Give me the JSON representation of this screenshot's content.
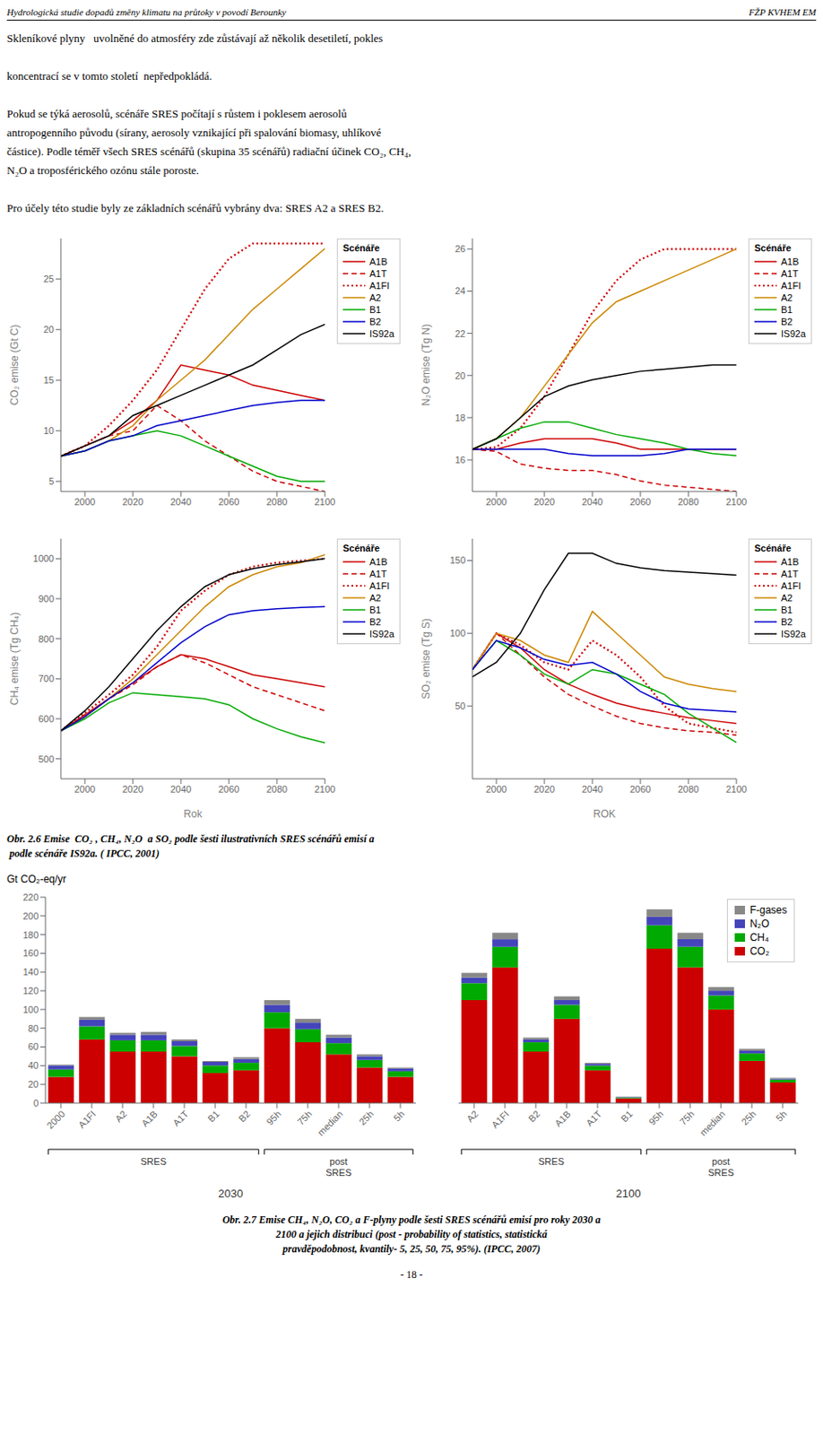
{
  "chart_data": [
    {
      "type": "line",
      "ylabel": "CO₂ emise (Gt C)",
      "legend": "right",
      "legend_title": "Scénáře",
      "grid": false,
      "x": [
        1990,
        2000,
        2010,
        2020,
        2030,
        2040,
        2050,
        2060,
        2070,
        2080,
        2090,
        2100
      ],
      "xlim": [
        1990,
        2100
      ],
      "xticks": [
        2000,
        2020,
        2040,
        2060,
        2080,
        2100
      ],
      "ylim": [
        4,
        29
      ],
      "yticks": [
        5,
        10,
        15,
        20,
        25
      ],
      "series": [
        {
          "name": "A1B",
          "color": "#cc0000",
          "line_style": "solid",
          "values": [
            7.5,
            8.5,
            9.5,
            11.0,
            13.0,
            16.5,
            16.0,
            15.5,
            14.5,
            14.0,
            13.5,
            13.0
          ]
        },
        {
          "name": "A1T",
          "color": "#cc0000",
          "line_style": "dashed",
          "values": [
            7.5,
            8.5,
            9.5,
            10.0,
            12.5,
            11.0,
            9.0,
            7.5,
            6.0,
            5.0,
            4.5,
            4.0
          ]
        },
        {
          "name": "A1FI",
          "color": "#cc0000",
          "line_style": "dotted",
          "values": [
            7.5,
            8.5,
            10.5,
            13.0,
            16.0,
            20.0,
            24.0,
            27.0,
            28.5,
            28.5,
            28.5,
            28.5
          ]
        },
        {
          "name": "A2",
          "color": "#cc8800",
          "line_style": "solid",
          "values": [
            7.5,
            8.0,
            9.0,
            10.5,
            13.0,
            15.0,
            17.0,
            19.5,
            22.0,
            24.0,
            26.0,
            28.0
          ]
        },
        {
          "name": "B1",
          "color": "#00aa00",
          "line_style": "solid",
          "values": [
            7.5,
            8.0,
            9.0,
            9.5,
            10.0,
            9.5,
            8.5,
            7.5,
            6.5,
            5.5,
            5.0,
            5.0
          ]
        },
        {
          "name": "B2",
          "color": "#0000cc",
          "line_style": "solid",
          "values": [
            7.5,
            8.0,
            9.0,
            9.5,
            10.5,
            11.0,
            11.5,
            12.0,
            12.5,
            12.8,
            13.0,
            13.0
          ]
        },
        {
          "name": "IS92a",
          "color": "#000000",
          "line_style": "solid",
          "values": [
            7.5,
            8.5,
            9.5,
            11.5,
            12.5,
            13.5,
            14.5,
            15.5,
            16.5,
            18.0,
            19.5,
            20.5
          ]
        }
      ],
      "annotations": [
        "Hydrologická studie dopadů změny klimatu na průtoky v povodí Berounky",
        "FŽP KVHEM EM",
        "Skleníkové plyny   uvolněné do atmosféry zde zůstávají až několik desetiletí, pokles\n\nkoncentrací se v tomto století  nepředpokládá.\n\nPokud se týká aerosolů, scénáře SRES počítají s růstem i poklesem aerosolů\nantropogenního původu (sírany, aerosoly vznikající při spalování biomasy, uhlíkové\nčástice). Podle téměř všech SRES scénářů (skupina 35 scénářů) radiační účinek CO₂, CH₄,\nN₂O a troposférického ozónu stále poroste.\n\nPro účely této studie byly ze základních scénářů vybrány dva: SRES A2 a SRES B2."
      ]
    },
    {
      "type": "line",
      "ylabel": "N₂O emise (Tg N)",
      "legend": "right",
      "legend_title": "Scénáře",
      "grid": false,
      "x": [
        1990,
        2000,
        2010,
        2020,
        2030,
        2040,
        2050,
        2060,
        2070,
        2080,
        2090,
        2100
      ],
      "xlim": [
        1990,
        2100
      ],
      "xticks": [
        2000,
        2020,
        2040,
        2060,
        2080,
        2100
      ],
      "ylim": [
        14.5,
        26.5
      ],
      "yticks": [
        16,
        18,
        20,
        22,
        24,
        26
      ],
      "series": [
        {
          "name": "A1B",
          "color": "#cc0000",
          "line_style": "solid",
          "values": [
            16.5,
            16.5,
            16.8,
            17.0,
            17.0,
            17.0,
            16.8,
            16.5,
            16.5,
            16.5,
            16.5,
            16.5
          ]
        },
        {
          "name": "A1T",
          "color": "#cc0000",
          "line_style": "dashed",
          "values": [
            16.5,
            16.4,
            15.8,
            15.6,
            15.5,
            15.5,
            15.3,
            15.0,
            14.8,
            14.7,
            14.6,
            14.5
          ]
        },
        {
          "name": "A1FI",
          "color": "#cc0000",
          "line_style": "dotted",
          "values": [
            16.5,
            16.6,
            17.5,
            19.0,
            21.0,
            23.0,
            24.5,
            25.5,
            26.0,
            26.0,
            26.0,
            26.0
          ]
        },
        {
          "name": "A2",
          "color": "#cc8800",
          "line_style": "solid",
          "values": [
            16.5,
            17.0,
            18.0,
            19.5,
            21.0,
            22.5,
            23.5,
            24.0,
            24.5,
            25.0,
            25.5,
            26.0
          ]
        },
        {
          "name": "B1",
          "color": "#00aa00",
          "line_style": "solid",
          "values": [
            16.5,
            17.0,
            17.5,
            17.8,
            17.8,
            17.5,
            17.2,
            17.0,
            16.8,
            16.5,
            16.3,
            16.2
          ]
        },
        {
          "name": "B2",
          "color": "#0000cc",
          "line_style": "solid",
          "values": [
            16.5,
            16.5,
            16.5,
            16.5,
            16.3,
            16.2,
            16.2,
            16.2,
            16.3,
            16.5,
            16.5,
            16.5
          ]
        },
        {
          "name": "IS92a",
          "color": "#000000",
          "line_style": "solid",
          "values": [
            16.5,
            17.0,
            18.0,
            19.0,
            19.5,
            19.8,
            20.0,
            20.2,
            20.3,
            20.4,
            20.5,
            20.5
          ]
        }
      ]
    },
    {
      "type": "line",
      "ylabel": "CH₄  emise  (Tg CH₄)",
      "xlabel": "Rok",
      "legend": "right",
      "legend_title": "Scénáře",
      "grid": false,
      "x": [
        1990,
        2000,
        2010,
        2020,
        2030,
        2040,
        2050,
        2060,
        2070,
        2080,
        2090,
        2100
      ],
      "xlim": [
        1990,
        2100
      ],
      "xticks": [
        2000,
        2020,
        2040,
        2060,
        2080,
        2100
      ],
      "ylim": [
        450,
        1050
      ],
      "yticks": [
        500,
        600,
        700,
        800,
        900,
        1000
      ],
      "series": [
        {
          "name": "A1B",
          "color": "#cc0000",
          "line_style": "solid",
          "values": [
            570,
            610,
            650,
            690,
            730,
            760,
            750,
            730,
            710,
            700,
            690,
            680
          ]
        },
        {
          "name": "A1T",
          "color": "#cc0000",
          "line_style": "dashed",
          "values": [
            570,
            610,
            650,
            685,
            730,
            760,
            740,
            710,
            680,
            660,
            640,
            620
          ]
        },
        {
          "name": "A1FI",
          "color": "#cc0000",
          "line_style": "dotted",
          "values": [
            570,
            615,
            660,
            710,
            780,
            870,
            920,
            960,
            980,
            990,
            995,
            1000
          ]
        },
        {
          "name": "A2",
          "color": "#cc8800",
          "line_style": "solid",
          "values": [
            570,
            605,
            650,
            700,
            760,
            820,
            880,
            930,
            960,
            980,
            990,
            1010
          ]
        },
        {
          "name": "B1",
          "color": "#00aa00",
          "line_style": "solid",
          "values": [
            570,
            600,
            640,
            665,
            660,
            655,
            650,
            635,
            600,
            575,
            555,
            540
          ]
        },
        {
          "name": "B2",
          "color": "#0000cc",
          "line_style": "solid",
          "values": [
            570,
            605,
            650,
            690,
            740,
            790,
            830,
            860,
            870,
            875,
            878,
            880
          ]
        },
        {
          "name": "IS92a",
          "color": "#000000",
          "line_style": "solid",
          "values": [
            570,
            620,
            680,
            750,
            820,
            880,
            930,
            960,
            975,
            985,
            992,
            1000
          ]
        }
      ]
    },
    {
      "type": "line",
      "ylabel": "SO₂ emise (Tg S)",
      "xlabel": "ROK",
      "legend": "right",
      "legend_title": "Scénáře",
      "grid": false,
      "x": [
        1990,
        2000,
        2010,
        2020,
        2030,
        2040,
        2050,
        2060,
        2070,
        2080,
        2090,
        2100
      ],
      "xlim": [
        1990,
        2100
      ],
      "xticks": [
        2000,
        2020,
        2040,
        2060,
        2080,
        2100
      ],
      "ylim": [
        0,
        165
      ],
      "yticks": [
        50,
        100,
        150
      ],
      "series": [
        {
          "name": "A1B",
          "color": "#cc0000",
          "line_style": "solid",
          "values": [
            75,
            100,
            90,
            75,
            65,
            58,
            52,
            48,
            45,
            42,
            40,
            38
          ]
        },
        {
          "name": "A1T",
          "color": "#cc0000",
          "line_style": "dashed",
          "values": [
            75,
            100,
            85,
            70,
            58,
            50,
            43,
            38,
            35,
            33,
            32,
            30
          ]
        },
        {
          "name": "A1FI",
          "color": "#cc0000",
          "line_style": "dotted",
          "values": [
            75,
            100,
            92,
            80,
            75,
            95,
            85,
            70,
            50,
            38,
            35,
            32
          ]
        },
        {
          "name": "A2",
          "color": "#cc8800",
          "line_style": "solid",
          "values": [
            75,
            100,
            95,
            85,
            80,
            115,
            100,
            85,
            70,
            65,
            62,
            60
          ]
        },
        {
          "name": "B1",
          "color": "#00aa00",
          "line_style": "solid",
          "values": [
            75,
            95,
            85,
            72,
            65,
            75,
            72,
            65,
            58,
            45,
            35,
            25
          ]
        },
        {
          "name": "B2",
          "color": "#0000cc",
          "line_style": "solid",
          "values": [
            75,
            95,
            90,
            82,
            78,
            80,
            72,
            60,
            52,
            48,
            47,
            46
          ]
        },
        {
          "name": "IS92a",
          "color": "#000000",
          "line_style": "solid",
          "values": [
            70,
            80,
            100,
            130,
            155,
            155,
            148,
            145,
            143,
            142,
            141,
            140
          ]
        }
      ],
      "annotations": [
        "Obr. 2.6 Emise  CO₂ , CH₄, N₂O  a SO₂ podle šesti ilustrativních SRES scénářů emisí a\n podle scénáře IS92a. ( IPCC, 2001)"
      ]
    },
    {
      "type": "bar",
      "stacked": true,
      "grid": false,
      "ylabel": "Gt CO₂-eq/yr",
      "xlabel": "2030",
      "categories": [
        "2000",
        "A1FI",
        "A2",
        "A1B",
        "A1T",
        "B1",
        "B2",
        "95h",
        "75h",
        "median",
        "25h",
        "5h"
      ],
      "ylim": [
        0,
        220
      ],
      "yticks": [
        0,
        20,
        40,
        60,
        80,
        100,
        120,
        140,
        160,
        180,
        200,
        220
      ],
      "series": [
        {
          "name": "CO₂",
          "color": "#cc0000",
          "values": [
            28,
            68,
            55,
            55,
            50,
            32,
            35,
            80,
            65,
            52,
            38,
            28
          ]
        },
        {
          "name": "CH₄",
          "color": "#00aa00",
          "values": [
            8,
            14,
            12,
            12,
            11,
            8,
            8,
            17,
            14,
            12,
            8,
            6
          ]
        },
        {
          "name": "N₂O",
          "color": "#4444bb",
          "values": [
            4,
            7,
            6,
            6,
            5,
            4,
            4,
            8,
            7,
            6,
            4,
            3
          ]
        },
        {
          "name": "F-gases",
          "color": "#888888",
          "values": [
            1,
            3,
            2,
            3,
            2,
            1,
            2,
            5,
            4,
            3,
            2,
            1
          ]
        }
      ],
      "brackets": [
        {
          "label": "SRES",
          "first": "2000",
          "last": "B2"
        },
        {
          "label": "post\nSRES",
          "first": "95h",
          "last": "5h"
        }
      ]
    },
    {
      "type": "bar",
      "stacked": true,
      "grid": false,
      "xlabel": "2100",
      "tick_labels": "x",
      "legend": "upper right",
      "categories": [
        "A2",
        "A1FI",
        "B2",
        "A1B",
        "A1T",
        "B1",
        "95h",
        "75h",
        "median",
        "25h",
        "5h"
      ],
      "ylim": [
        0,
        220
      ],
      "yticks": [
        0,
        20,
        40,
        60,
        80,
        100,
        120,
        140,
        160,
        180,
        200,
        220
      ],
      "series": [
        {
          "name": "CO₂",
          "color": "#cc0000",
          "values": [
            110,
            145,
            55,
            90,
            35,
            5,
            165,
            145,
            100,
            45,
            22
          ]
        },
        {
          "name": "CH₄",
          "color": "#00aa00",
          "values": [
            18,
            22,
            10,
            15,
            5,
            1,
            25,
            22,
            15,
            8,
            3
          ]
        },
        {
          "name": "N₂O",
          "color": "#4444bb",
          "values": [
            6,
            8,
            3,
            5,
            2,
            0.5,
            9,
            8,
            5,
            3,
            1
          ]
        },
        {
          "name": "F-gases",
          "color": "#888888",
          "values": [
            5,
            7,
            2,
            4,
            1,
            0.3,
            8,
            7,
            4,
            2,
            1
          ]
        }
      ],
      "brackets": [
        {
          "label": "SRES",
          "first": "A2",
          "last": "B1"
        },
        {
          "label": "post\nSRES",
          "first": "95h",
          "last": "5h"
        }
      ],
      "annotations": [
        "Obr. 2.7 Emise CH₄, N₂O, CO₂ a F-plyny podle šesti SRES scénářů emisí pro roky 2030 a\n2100 a jejich distribuci (post - probability of statistics, statistická\npravděpodobnost, kvantily- 5, 25, 50, 75, 95%). (IPCC, 2007)",
        "- 18 -"
      ]
    }
  ]
}
